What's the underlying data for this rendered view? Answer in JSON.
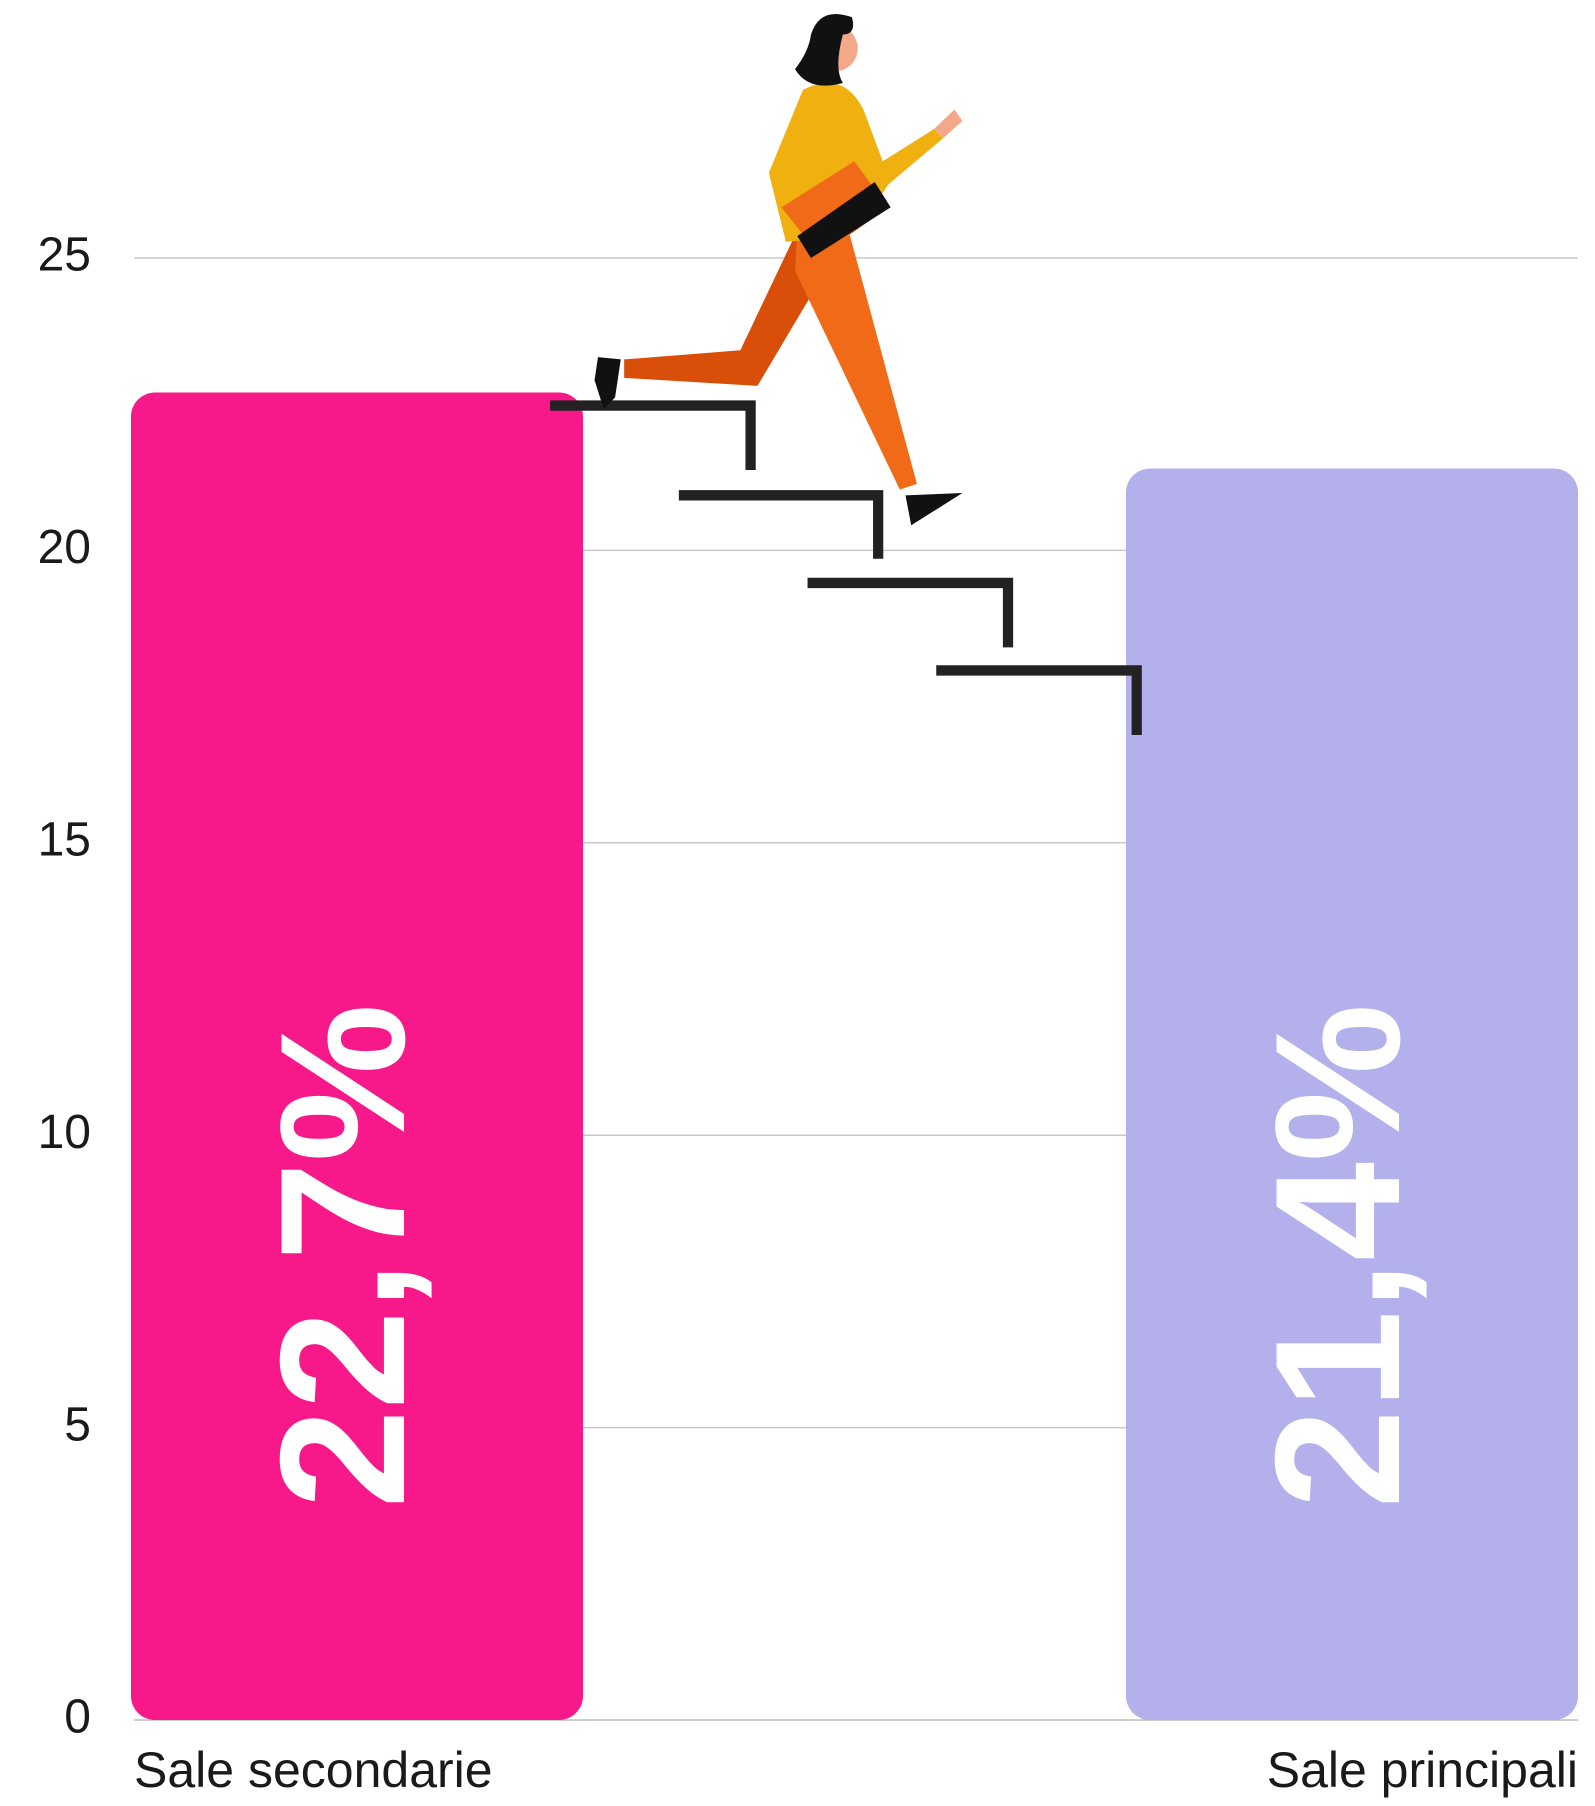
{
  "chart_data": {
    "type": "bar",
    "categories": [
      "Sale secondarie",
      "Sale principali"
    ],
    "values": [
      22.7,
      21.4
    ],
    "value_labels": [
      "22,7%",
      "21,4%"
    ],
    "colors": [
      "#f7198a",
      "#b3b0ec"
    ],
    "ylim": [
      0,
      25
    ],
    "yticks": [
      0,
      5,
      10,
      15,
      20,
      25
    ],
    "grid": true
  }
}
